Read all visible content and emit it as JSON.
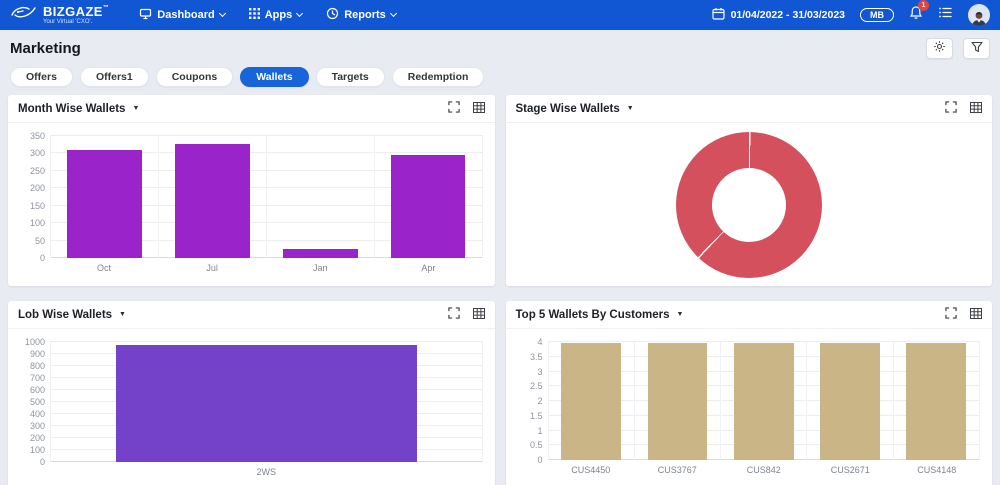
{
  "navbar": {
    "brand": {
      "name": "BIZGAZE",
      "tm": "™",
      "tagline": "Your Virtual 'CXO'."
    },
    "menus": [
      {
        "label": "Dashboard"
      },
      {
        "label": "Apps"
      },
      {
        "label": "Reports"
      }
    ],
    "date_range": "01/04/2022 - 31/03/2023",
    "user_badge": "MB",
    "notification_count": "1"
  },
  "page": {
    "title": "Marketing"
  },
  "tabs": [
    {
      "label": "Offers",
      "active": false
    },
    {
      "label": "Offers1",
      "active": false
    },
    {
      "label": "Coupons",
      "active": false
    },
    {
      "label": "Wallets",
      "active": true
    },
    {
      "label": "Targets",
      "active": false
    },
    {
      "label": "Redemption",
      "active": false
    }
  ],
  "icons": [
    "dashboard-icon",
    "apps-grid-icon",
    "reports-icon",
    "calendar-icon",
    "bell-icon",
    "list-icon",
    "gear-icon",
    "filter-icon",
    "expand-icon",
    "table-icon",
    "caret-down-icon"
  ],
  "colors": {
    "navbar": "#1157d3",
    "active_tab": "#1765d8",
    "chart1_bar": "#9a23c9",
    "chart2_donut": "#d4505d",
    "chart3_bar": "#7442c9",
    "chart4_bar": "#c9b585"
  },
  "chart_data": [
    {
      "type": "bar",
      "title": "Month Wise Wallets",
      "categories": [
        "Oct",
        "Jul",
        "Jan",
        "Apr"
      ],
      "values": [
        310,
        327,
        26,
        295
      ],
      "ylim": [
        0,
        350
      ],
      "ytick_step": 50,
      "xlabel": "",
      "ylabel": "",
      "grid": true,
      "legend": false,
      "bar_color": "#9a23c9"
    },
    {
      "type": "donut",
      "title": "Stage Wise Wallets",
      "segments": [
        62,
        38
      ],
      "segment_colors": [
        "#d4505d",
        "#d4505d"
      ],
      "legend": false
    },
    {
      "type": "bar",
      "title": "Lob Wise Wallets",
      "categories": [
        "2WS"
      ],
      "values": [
        975
      ],
      "ylim": [
        0,
        1000
      ],
      "ytick_step": 100,
      "xlabel": "",
      "ylabel": "",
      "grid": true,
      "legend": false,
      "bar_color": "#7442c9"
    },
    {
      "type": "bar",
      "title": "Top 5 Wallets By Customers",
      "categories": [
        "CUS4450",
        "CUS3767",
        "CUS842",
        "CUS2671",
        "CUS4148"
      ],
      "values": [
        3.97,
        3.97,
        3.97,
        3.97,
        3.97
      ],
      "ylim": [
        0,
        4
      ],
      "ytick_step": 0.5,
      "xlabel": "",
      "ylabel": "",
      "grid": true,
      "legend": false,
      "bar_color": "#c9b585"
    }
  ]
}
